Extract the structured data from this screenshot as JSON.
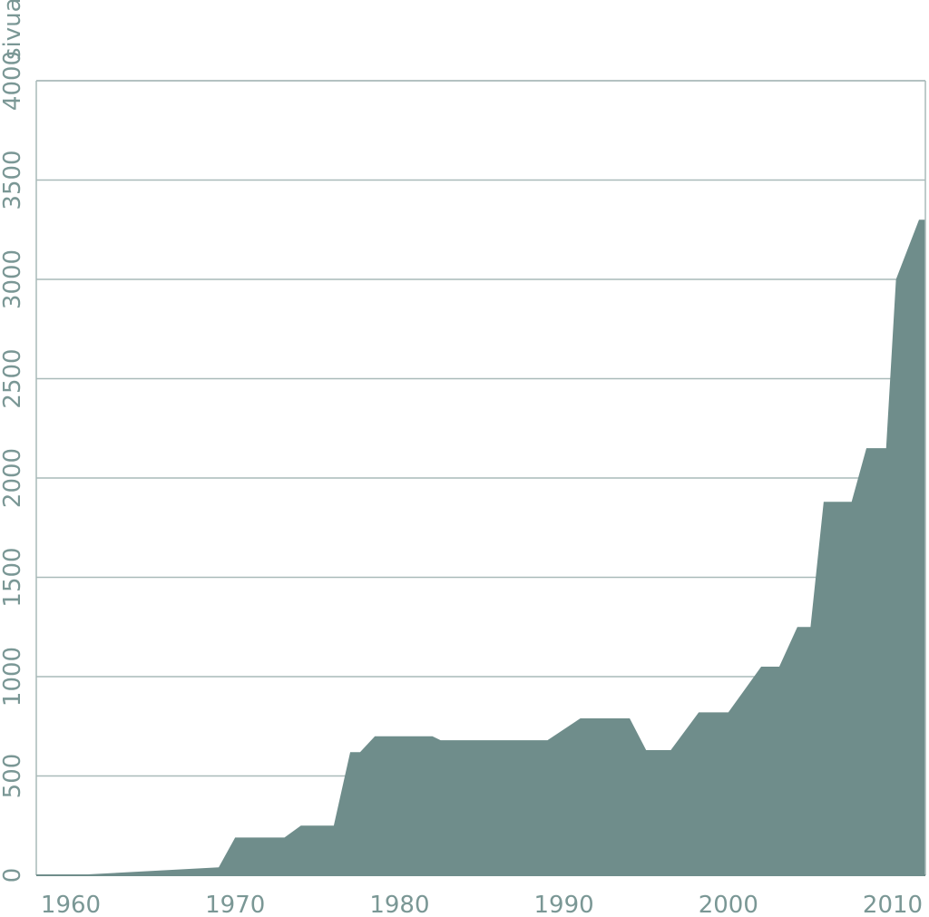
{
  "chart_data": {
    "type": "area",
    "title": "",
    "xlabel": "",
    "ylabel": "",
    "y_unit": "sivua",
    "xlim": [
      1958,
      2012
    ],
    "ylim": [
      0,
      4000
    ],
    "x_ticks": [
      1960,
      1970,
      1980,
      1990,
      2000,
      2010
    ],
    "y_ticks": [
      0,
      500,
      1000,
      1500,
      2000,
      2500,
      3000,
      3500,
      4000
    ],
    "grid": true,
    "colors": {
      "fill": "#6f8d8b",
      "grid": "#a9bab9",
      "text": "#7a9795"
    },
    "series": [
      {
        "x": [
          1960,
          1969,
          1970,
          1973,
          1974,
          1976,
          1977,
          1977.6,
          1978.5,
          1982,
          1982.5,
          1989,
          1991,
          1994,
          1995,
          1996.5,
          1998.2,
          2000,
          2002,
          2003.1,
          2004.2,
          2005,
          2005.8,
          2007.5,
          2008.4,
          2009.6,
          2010.2,
          2011.6,
          2012
        ],
        "y": [
          0,
          40,
          190,
          190,
          250,
          250,
          620,
          620,
          700,
          700,
          680,
          680,
          790,
          790,
          630,
          630,
          820,
          820,
          1050,
          1050,
          1250,
          1250,
          1880,
          1880,
          2150,
          2150,
          3000,
          3300,
          3300
        ]
      }
    ]
  }
}
